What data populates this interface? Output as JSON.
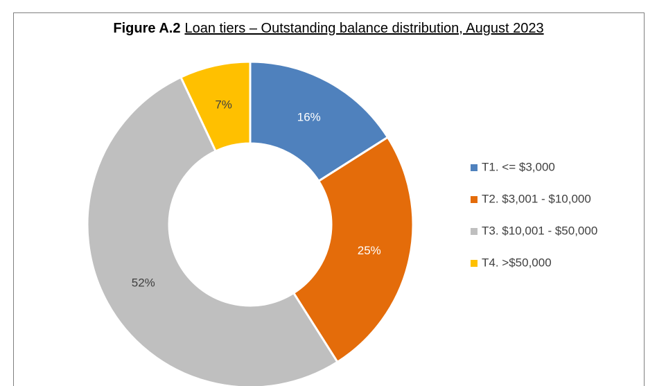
{
  "chart_data": {
    "type": "donut",
    "title_label": "Figure A.2",
    "title": "Loan tiers – Outstanding balance distribution, August 2023",
    "categories": [
      "T1. <= $3,000",
      "T2. $3,001 - $10,000",
      "T3. $10,001 - $50,000",
      "T4. >$50,000"
    ],
    "values": [
      16,
      25,
      52,
      7
    ],
    "value_labels": [
      "16%",
      "25%",
      "52%",
      "7%"
    ],
    "colors": [
      "#4f81bd",
      "#e46c0a",
      "#bfbfbf",
      "#ffc000"
    ],
    "legend": "right"
  }
}
